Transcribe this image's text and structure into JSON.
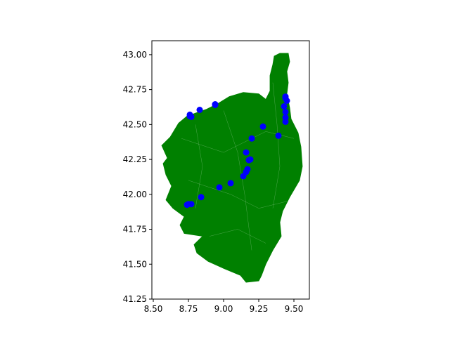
{
  "chart_data": {
    "type": "scatter",
    "title": "",
    "xlabel": "",
    "ylabel": "",
    "xlim": [
      8.49,
      9.61
    ],
    "ylim": [
      41.25,
      43.1
    ],
    "x_ticks": [
      8.5,
      8.75,
      9.0,
      9.25,
      9.5
    ],
    "x_tick_labels": [
      "8.50",
      "8.75",
      "9.00",
      "9.25",
      "9.50"
    ],
    "y_ticks": [
      41.25,
      41.5,
      41.75,
      42.0,
      42.25,
      42.5,
      42.75,
      43.0
    ],
    "y_tick_labels": [
      "41.25",
      "41.50",
      "41.75",
      "42.00",
      "42.25",
      "42.50",
      "42.75",
      "43.00"
    ],
    "grid": false,
    "legend": "none",
    "region_fill_color": "#008000",
    "region_edge_color": "#ffffff",
    "marker_color": "#0000ff",
    "region_outline": [
      [
        9.4,
        43.01
      ],
      [
        9.46,
        43.01
      ],
      [
        9.47,
        42.95
      ],
      [
        9.45,
        42.88
      ],
      [
        9.46,
        42.8
      ],
      [
        9.45,
        42.72
      ],
      [
        9.47,
        42.62
      ],
      [
        9.48,
        42.54
      ],
      [
        9.53,
        42.44
      ],
      [
        9.55,
        42.34
      ],
      [
        9.56,
        42.2
      ],
      [
        9.54,
        42.1
      ],
      [
        9.47,
        41.98
      ],
      [
        9.42,
        41.88
      ],
      [
        9.4,
        41.8
      ],
      [
        9.41,
        41.7
      ],
      [
        9.35,
        41.6
      ],
      [
        9.3,
        41.5
      ],
      [
        9.27,
        41.42
      ],
      [
        9.25,
        41.38
      ],
      [
        9.16,
        41.37
      ],
      [
        9.12,
        41.42
      ],
      [
        9.0,
        41.47
      ],
      [
        8.89,
        41.52
      ],
      [
        8.81,
        41.58
      ],
      [
        8.79,
        41.64
      ],
      [
        8.85,
        41.7
      ],
      [
        8.72,
        41.72
      ],
      [
        8.69,
        41.78
      ],
      [
        8.72,
        41.84
      ],
      [
        8.64,
        41.9
      ],
      [
        8.59,
        41.96
      ],
      [
        8.63,
        42.06
      ],
      [
        8.59,
        42.14
      ],
      [
        8.57,
        42.22
      ],
      [
        8.6,
        42.26
      ],
      [
        8.56,
        42.35
      ],
      [
        8.62,
        42.41
      ],
      [
        8.68,
        42.51
      ],
      [
        8.74,
        42.56
      ],
      [
        8.88,
        42.61
      ],
      [
        8.96,
        42.65
      ],
      [
        9.04,
        42.7
      ],
      [
        9.14,
        42.73
      ],
      [
        9.25,
        42.72
      ],
      [
        9.3,
        42.68
      ],
      [
        9.33,
        42.74
      ],
      [
        9.33,
        42.85
      ],
      [
        9.35,
        42.93
      ],
      [
        9.36,
        42.99
      ]
    ],
    "points": [
      [
        8.76,
        42.56
      ],
      [
        8.77,
        42.555
      ],
      [
        8.76,
        42.57
      ],
      [
        8.83,
        42.605
      ],
      [
        8.94,
        42.64
      ],
      [
        8.94,
        42.645
      ],
      [
        9.44,
        42.69
      ],
      [
        9.44,
        42.7
      ],
      [
        9.45,
        42.67
      ],
      [
        9.43,
        42.63
      ],
      [
        9.44,
        42.59
      ],
      [
        9.44,
        42.55
      ],
      [
        9.44,
        42.52
      ],
      [
        9.28,
        42.485
      ],
      [
        9.39,
        42.42
      ],
      [
        9.2,
        42.4
      ],
      [
        9.16,
        42.3
      ],
      [
        9.19,
        42.25
      ],
      [
        9.18,
        42.245
      ],
      [
        9.17,
        42.18
      ],
      [
        9.16,
        42.16
      ],
      [
        9.14,
        42.13
      ],
      [
        9.05,
        42.08
      ],
      [
        8.97,
        42.05
      ],
      [
        8.84,
        41.98
      ],
      [
        8.75,
        41.93
      ],
      [
        8.74,
        41.925
      ],
      [
        8.77,
        41.93
      ]
    ]
  }
}
